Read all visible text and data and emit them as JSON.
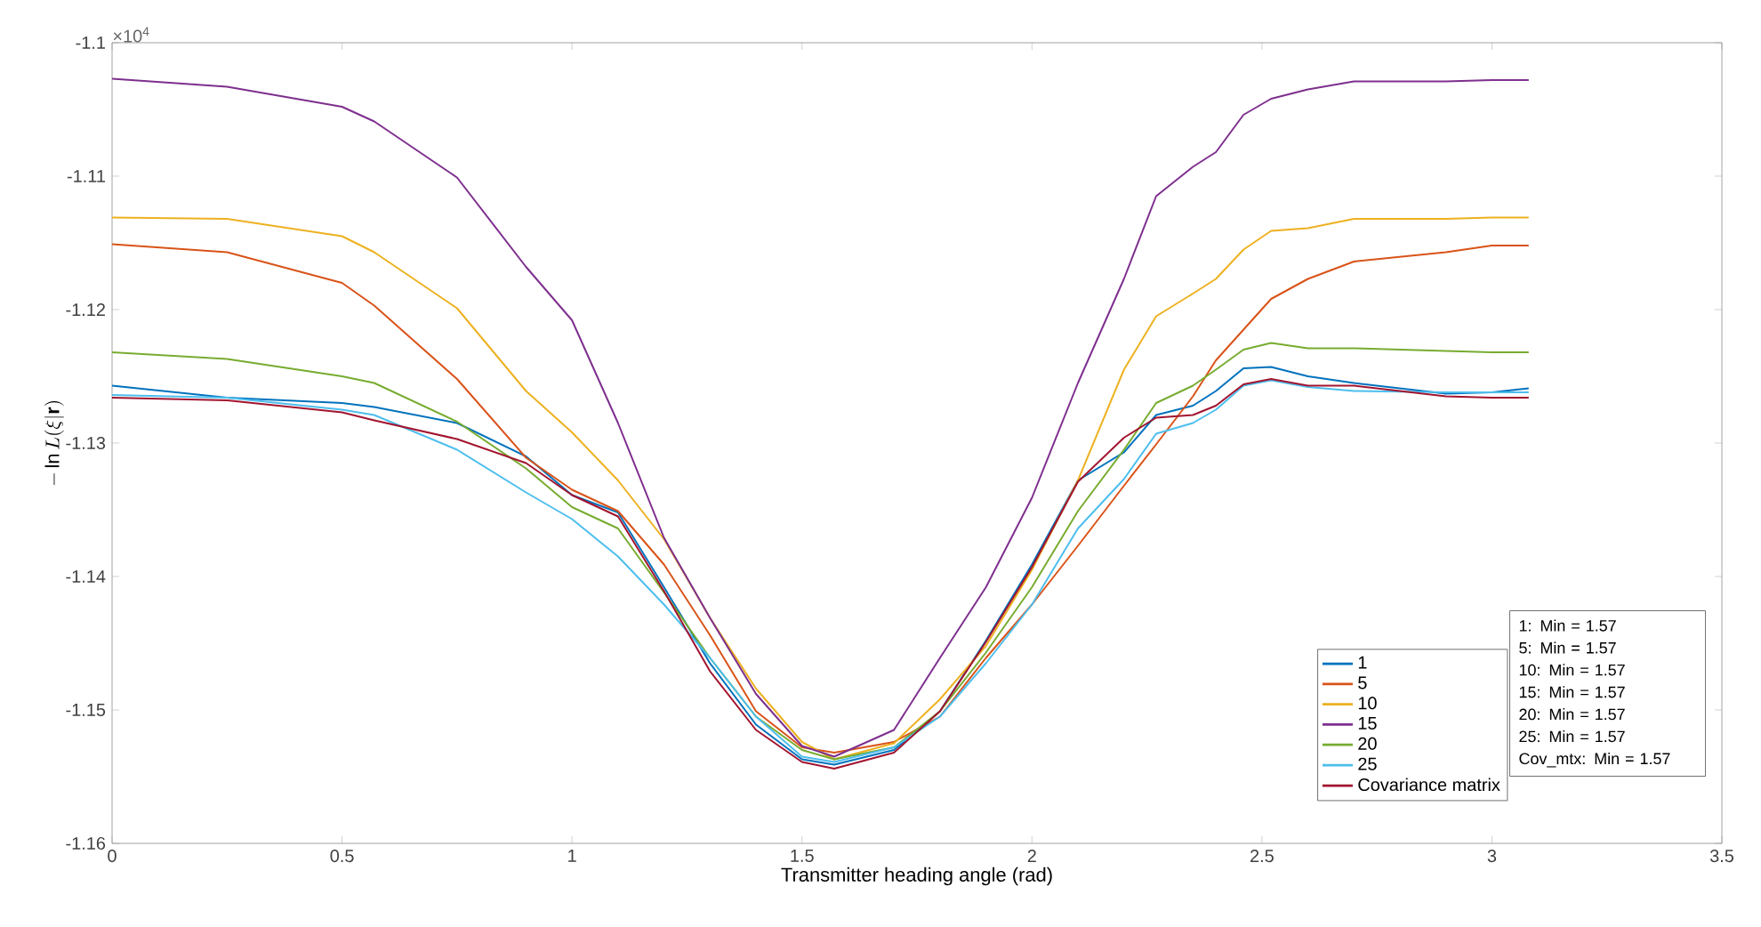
{
  "chart_data": {
    "type": "line",
    "xlabel": "Transmitter heading angle (rad)",
    "ylabel": "-\\ln L(\\xi|\\mathbf{r})",
    "x": [
      0,
      0.25,
      0.5,
      0.57,
      0.75,
      0.9,
      1.0,
      1.1,
      1.2,
      1.3,
      1.4,
      1.5,
      1.57,
      1.7,
      1.8,
      1.9,
      2.0,
      2.1,
      2.2,
      2.27,
      2.35,
      2.4,
      2.46,
      2.52,
      2.6,
      2.7,
      2.9,
      3.0,
      3.08
    ],
    "series": [
      {
        "name": "1",
        "color": "#0072bd",
        "values": [
          -1.1257,
          -1.1266,
          -1.127,
          -1.1273,
          -1.1285,
          -1.131,
          -1.1339,
          -1.1352,
          -1.1408,
          -1.1465,
          -1.1511,
          -1.1537,
          -1.1541,
          -1.153,
          -1.1501,
          -1.1448,
          -1.1391,
          -1.1328,
          -1.1307,
          -1.1279,
          -1.1272,
          -1.1261,
          -1.1244,
          -1.1243,
          -1.125,
          -1.1255,
          -1.1263,
          -1.1262,
          -1.1259
        ]
      },
      {
        "name": "5",
        "color": "#d95319",
        "values": [
          -1.1151,
          -1.1157,
          -1.118,
          -1.1197,
          -1.1252,
          -1.1311,
          -1.1335,
          -1.1351,
          -1.1391,
          -1.1444,
          -1.1501,
          -1.1528,
          -1.1532,
          -1.1524,
          -1.1505,
          -1.1461,
          -1.1421,
          -1.1377,
          -1.1332,
          -1.1301,
          -1.1265,
          -1.1238,
          -1.1215,
          -1.1192,
          -1.1177,
          -1.1164,
          -1.1157,
          -1.1152,
          -1.1152
        ]
      },
      {
        "name": "10",
        "color": "#edb120",
        "values": [
          -1.1131,
          -1.1132,
          -1.1145,
          -1.1157,
          -1.1199,
          -1.1261,
          -1.1292,
          -1.1328,
          -1.1372,
          -1.1431,
          -1.1484,
          -1.1524,
          -1.1537,
          -1.1525,
          -1.1492,
          -1.1452,
          -1.1395,
          -1.1328,
          -1.1245,
          -1.1205,
          -1.1188,
          -1.1177,
          -1.1155,
          -1.1141,
          -1.1139,
          -1.1132,
          -1.1132,
          -1.1131,
          -1.1131
        ]
      },
      {
        "name": "15",
        "color": "#7e2f8e",
        "values": [
          -1.1027,
          -1.1033,
          -1.1048,
          -1.1059,
          -1.1101,
          -1.1168,
          -1.1208,
          -1.1285,
          -1.1371,
          -1.1431,
          -1.1488,
          -1.1527,
          -1.1535,
          -1.1515,
          -1.1461,
          -1.1408,
          -1.1341,
          -1.1255,
          -1.1177,
          -1.1115,
          -1.1093,
          -1.1082,
          -1.1054,
          -1.1042,
          -1.1035,
          -1.1029,
          -1.1029,
          -1.1028,
          -1.1028
        ]
      },
      {
        "name": "20",
        "color": "#77ac30",
        "values": [
          -1.1232,
          -1.1237,
          -1.125,
          -1.1255,
          -1.1284,
          -1.1319,
          -1.1348,
          -1.1364,
          -1.1412,
          -1.1461,
          -1.1505,
          -1.153,
          -1.1537,
          -1.1528,
          -1.1501,
          -1.1457,
          -1.1408,
          -1.1351,
          -1.1305,
          -1.127,
          -1.1257,
          -1.1245,
          -1.123,
          -1.1225,
          -1.1229,
          -1.1229,
          -1.1231,
          -1.1232,
          -1.1232
        ]
      },
      {
        "name": "25",
        "color": "#4dbeee",
        "values": [
          -1.1264,
          -1.1266,
          -1.1275,
          -1.1279,
          -1.1305,
          -1.1337,
          -1.1357,
          -1.1385,
          -1.1421,
          -1.1461,
          -1.1505,
          -1.1535,
          -1.1539,
          -1.1528,
          -1.1505,
          -1.1465,
          -1.1421,
          -1.1364,
          -1.1327,
          -1.1293,
          -1.1285,
          -1.1275,
          -1.1257,
          -1.1253,
          -1.1258,
          -1.1261,
          -1.1262,
          -1.1262,
          -1.1262
        ]
      },
      {
        "name": "Covariance matrix",
        "color": "#a2142f",
        "values": [
          -1.1266,
          -1.1268,
          -1.1277,
          -1.1283,
          -1.1297,
          -1.1315,
          -1.1339,
          -1.1355,
          -1.1411,
          -1.1471,
          -1.1515,
          -1.1539,
          -1.1544,
          -1.1532,
          -1.1501,
          -1.1449,
          -1.1393,
          -1.1329,
          -1.1296,
          -1.1281,
          -1.1279,
          -1.1272,
          -1.1256,
          -1.1252,
          -1.1257,
          -1.1257,
          -1.1265,
          -1.1266,
          -1.1266
        ]
      }
    ],
    "xlim": [
      0,
      3.5
    ],
    "xticks": [
      0,
      0.5,
      1,
      1.5,
      2,
      2.5,
      3,
      3.5
    ],
    "ylim": [
      -1.16,
      -1.1
    ],
    "yticks": [
      -1.16,
      -1.15,
      -1.14,
      -1.13,
      -1.12,
      -1.11,
      -1.1
    ],
    "annotations": [
      "×10$^{4}$",
      "1: Min = 1.57",
      "5: Min = 1.57",
      "10: Min = 1.57",
      "15: Min = 1.57",
      "20: Min = 1.57",
      "25: Min = 1.57",
      "Cov_mtx: Min = 1.57"
    ],
    "grid": false,
    "legend": "bottom right",
    "marker": "none",
    "line_style": "solid"
  }
}
